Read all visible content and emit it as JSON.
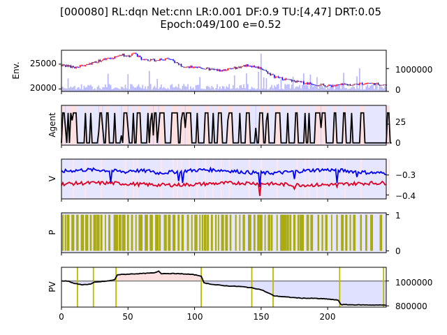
{
  "figure": {
    "title_line1": "[000080] RL:dqn Net:cnn LR:0.001 DF:0.9 TU:[4,47] DRT:0.05",
    "title_line2": "Epoch:049/100 e=0.52"
  },
  "chart_data": [
    {
      "panel": "env",
      "type": "candlestick+bar",
      "ylabel": "Env.",
      "xlim": [
        0,
        244
      ],
      "ylim": [
        19500,
        27800
      ],
      "yticks": [
        "20000",
        "25000"
      ],
      "right_ylim": [
        0,
        1800000
      ],
      "right_yticks": [
        "0",
        "1000000"
      ],
      "price": [
        [
          0,
          24800
        ],
        [
          10,
          24300
        ],
        [
          20,
          25000
        ],
        [
          30,
          25800
        ],
        [
          40,
          26300
        ],
        [
          45,
          27000
        ],
        [
          50,
          26500
        ],
        [
          55,
          27200
        ],
        [
          60,
          26000
        ],
        [
          70,
          25800
        ],
        [
          80,
          26100
        ],
        [
          90,
          24800
        ],
        [
          95,
          24300
        ],
        [
          100,
          24500
        ],
        [
          110,
          24000
        ],
        [
          120,
          23700
        ],
        [
          130,
          24200
        ],
        [
          140,
          24800
        ],
        [
          150,
          24200
        ],
        [
          155,
          23300
        ],
        [
          160,
          22500
        ],
        [
          170,
          21800
        ],
        [
          180,
          21300
        ],
        [
          190,
          21000
        ],
        [
          200,
          20600
        ],
        [
          210,
          20800
        ],
        [
          220,
          20900
        ],
        [
          230,
          21200
        ],
        [
          240,
          20900
        ],
        [
          244,
          20700
        ]
      ],
      "candle_colors": {
        "up": "#ff0000",
        "down": "#0000ff"
      },
      "volume_color": "#b3b3ff"
    },
    {
      "panel": "agent",
      "type": "step-line",
      "ylabel": "Agent",
      "ylim": [
        -3,
        50
      ],
      "yticks": [
        "0",
        "25"
      ],
      "values": [
        0,
        40,
        40,
        20,
        0,
        40,
        0,
        40,
        30,
        40,
        40,
        40,
        0,
        0,
        0,
        0,
        0,
        0,
        40,
        0,
        0,
        0,
        40,
        0,
        0,
        0,
        0,
        0,
        15,
        40,
        40,
        20,
        0,
        0,
        40,
        40,
        0,
        0,
        0,
        0,
        40,
        0,
        0,
        0,
        0,
        10,
        0,
        40,
        40,
        40,
        20,
        0,
        0,
        0,
        40,
        0,
        0,
        40,
        40,
        40,
        0,
        0,
        0,
        0,
        0,
        40,
        0,
        30,
        40,
        10,
        40,
        40,
        0,
        20,
        40,
        40,
        40,
        40,
        0,
        0,
        0,
        0,
        0,
        40,
        40,
        40,
        40,
        40,
        0,
        0,
        30,
        40,
        40,
        20,
        40,
        40,
        40,
        40,
        0,
        0,
        0,
        0,
        40,
        0,
        0,
        0,
        0,
        0,
        40,
        40,
        40,
        0,
        0,
        0,
        40,
        0,
        0,
        0,
        40,
        40,
        40,
        0,
        0,
        0,
        0,
        30,
        40,
        40,
        40,
        0,
        0,
        0,
        0,
        0,
        40,
        0,
        0,
        0,
        0,
        40,
        40,
        40,
        0,
        0,
        0,
        0,
        20,
        0,
        0,
        40,
        40,
        40,
        0,
        0,
        30,
        40,
        0,
        0,
        0,
        0,
        0,
        40,
        40,
        40,
        40,
        0,
        0,
        0,
        0,
        0,
        40,
        0,
        0,
        0,
        0,
        0,
        40,
        40,
        0,
        0,
        0,
        0,
        0,
        40,
        0,
        0,
        40,
        0,
        0,
        0,
        0,
        40,
        40,
        40,
        40,
        20,
        40,
        40,
        40,
        0,
        0,
        0,
        0,
        0,
        0,
        40,
        40,
        0,
        0,
        0,
        0,
        0,
        40,
        40,
        0,
        0,
        0,
        0,
        40,
        0,
        0,
        0,
        0,
        0,
        0,
        40,
        40,
        40,
        0,
        0,
        0,
        0,
        0,
        0,
        0,
        0,
        0,
        0,
        0,
        0,
        0,
        0,
        0,
        0,
        0,
        40,
        40,
        0,
        0
      ],
      "line_color": "#000000"
    },
    {
      "panel": "v",
      "type": "line",
      "ylabel": "V",
      "ylim": [
        -0.42,
        -0.22
      ],
      "yticks": [
        "−0.3",
        "−0.4"
      ],
      "series": [
        {
          "color": "#0000ee",
          "base": -0.282,
          "spikes": [
            [
              37,
              -0.34
            ],
            [
              88,
              -0.33
            ],
            [
              91,
              -0.34
            ],
            [
              149,
              -0.36
            ],
            [
              175,
              -0.32
            ],
            [
              207,
              -0.34
            ],
            [
              222,
              -0.31
            ]
          ]
        },
        {
          "color": "#dd0022",
          "base": -0.345,
          "spikes": [
            [
              149,
              -0.405
            ],
            [
              207,
              -0.36
            ],
            [
              175,
              -0.37
            ]
          ]
        }
      ]
    },
    {
      "panel": "p",
      "type": "bar",
      "ylabel": "P",
      "ylim": [
        -0.05,
        1.05
      ],
      "yticks": [
        "0",
        "1"
      ],
      "bar_color": "#aaaa11",
      "positions": [
        1,
        3,
        5,
        8,
        9,
        12,
        15,
        16,
        19,
        22,
        25,
        27,
        28,
        30,
        33,
        36,
        40,
        41,
        42,
        44,
        46,
        47,
        50,
        53,
        56,
        59,
        60,
        63,
        64,
        67,
        68,
        71,
        72,
        74,
        78,
        81,
        84,
        85,
        88,
        91,
        95,
        98,
        101,
        104,
        106,
        108,
        110,
        113,
        116,
        118,
        121,
        124,
        127,
        131,
        134,
        137,
        141,
        142,
        145,
        148,
        150,
        153,
        156,
        158,
        162,
        165,
        166,
        168,
        170,
        172,
        175,
        178,
        180,
        181,
        185,
        188,
        193,
        196,
        199,
        203,
        207,
        211,
        214,
        217,
        220,
        225,
        229,
        233,
        240
      ]
    },
    {
      "panel": "pv",
      "type": "line",
      "ylabel": "PV",
      "xlim": [
        0,
        244
      ],
      "ylim": [
        790000,
        1110000
      ],
      "yticks": [
        "800000",
        "1000000"
      ],
      "xticks": [
        "0",
        "50",
        "100",
        "150",
        "200"
      ],
      "baseline": 1000000,
      "values": [
        [
          0,
          1000000
        ],
        [
          5,
          1000000
        ],
        [
          8,
          985000
        ],
        [
          12,
          975000
        ],
        [
          16,
          970000
        ],
        [
          22,
          975000
        ],
        [
          25,
          990000
        ],
        [
          30,
          995000
        ],
        [
          35,
          1000000
        ],
        [
          40,
          1010000
        ],
        [
          42,
          1050000
        ],
        [
          50,
          1055000
        ],
        [
          60,
          1060000
        ],
        [
          70,
          1065000
        ],
        [
          73,
          1080000
        ],
        [
          75,
          1060000
        ],
        [
          85,
          1060000
        ],
        [
          95,
          1055000
        ],
        [
          100,
          1050000
        ],
        [
          105,
          1040000
        ],
        [
          107,
          985000
        ],
        [
          115,
          970000
        ],
        [
          125,
          960000
        ],
        [
          135,
          955000
        ],
        [
          143,
          945000
        ],
        [
          150,
          930000
        ],
        [
          160,
          880000
        ],
        [
          170,
          870000
        ],
        [
          180,
          862000
        ],
        [
          190,
          860000
        ],
        [
          200,
          855000
        ],
        [
          208,
          845000
        ],
        [
          210,
          810000
        ],
        [
          220,
          808000
        ],
        [
          230,
          807000
        ],
        [
          240,
          806000
        ],
        [
          244,
          806000
        ]
      ],
      "markers": [
        12,
        24,
        41,
        105,
        143,
        159,
        209,
        242
      ],
      "line_color": "#000000",
      "baseline_color": "#808080",
      "marker_color": "#bbbb00"
    }
  ]
}
